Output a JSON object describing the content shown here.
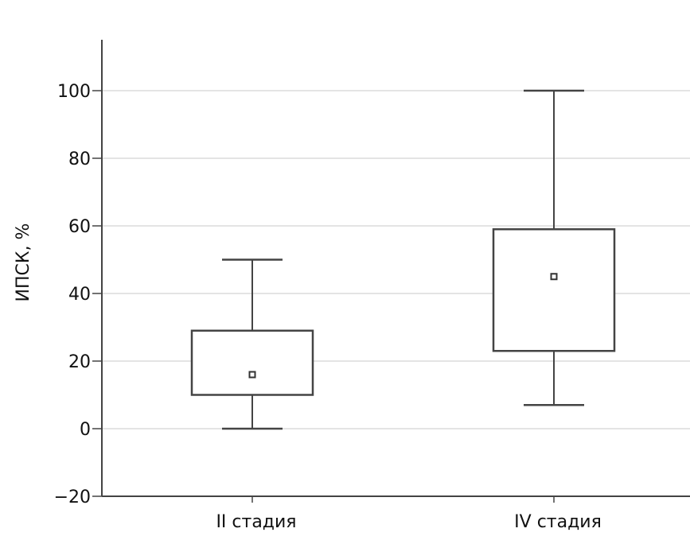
{
  "chart_data": {
    "type": "box",
    "ylabel": "ИПСК, %",
    "ylim": [
      -20,
      115
    ],
    "yticks": [
      -20,
      0,
      20,
      40,
      60,
      80,
      100
    ],
    "ytick_labels": [
      "−20",
      "0",
      "20",
      "40",
      "60",
      "80",
      "100"
    ],
    "grid": true,
    "categories": [
      "II стадия",
      "IV стадия"
    ],
    "boxes": [
      {
        "category": "II стадия",
        "whisker_low": 0,
        "q1": 10,
        "center": 16,
        "q3": 29,
        "whisker_high": 50
      },
      {
        "category": "IV стадия",
        "whisker_low": 7,
        "q1": 23,
        "center": 45,
        "q3": 59,
        "whisker_high": 100
      }
    ]
  }
}
